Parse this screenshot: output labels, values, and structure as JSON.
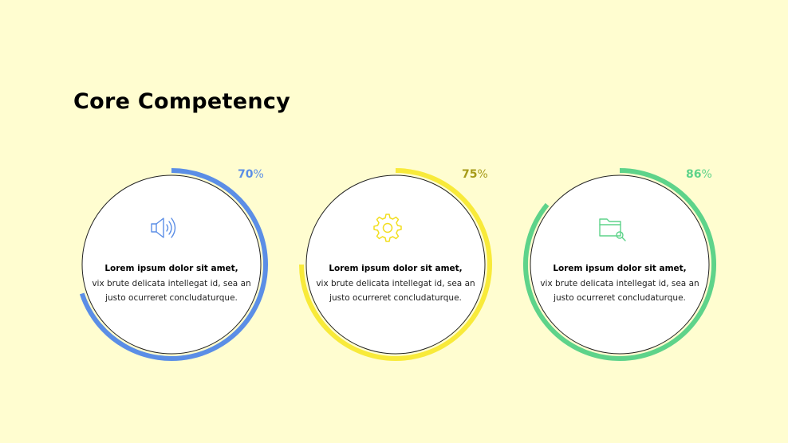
{
  "title": "Core Competency",
  "cards": [
    {
      "percent": "70",
      "unit": "%",
      "progress": 0.7,
      "color": "#5b8ee6",
      "pct_text_color": "#5b8ee6",
      "icon": "speaker-icon",
      "lead": "Lorem ipsum dolor sit amet,",
      "body": "vix brute delicata intellegat id, sea an justo ocurreret concludaturque."
    },
    {
      "percent": "75",
      "unit": "%",
      "progress": 0.75,
      "color": "#f8ea3a",
      "pct_text_color": "#a69a18",
      "icon": "gear-icon",
      "lead": "Lorem ipsum dolor sit amet,",
      "body": "vix brute delicata intellegat id, sea an justo ocurreret concludaturque."
    },
    {
      "percent": "86",
      "unit": "%",
      "progress": 0.86,
      "color": "#5ed38a",
      "pct_text_color": "#5ed38a",
      "icon": "folder-search-icon",
      "lead": "Lorem ipsum dolor sit amet,",
      "body": "vix brute delicata intellegat id, sea an justo ocurreret concludaturque."
    }
  ]
}
